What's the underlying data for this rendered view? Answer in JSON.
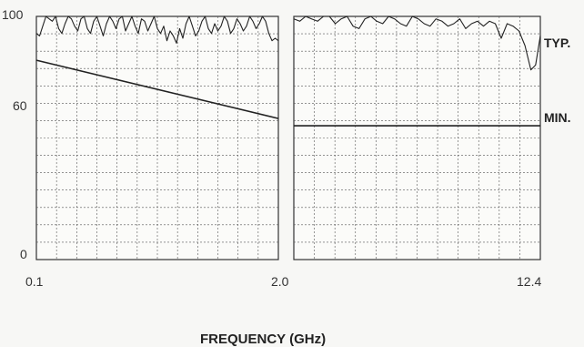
{
  "chart_data": {
    "type": "line",
    "xlabel": "FREQUENCY (GHz)",
    "ylabel": "",
    "ylim": [
      0,
      100
    ],
    "yticks": [
      "0",
      "60",
      "100"
    ],
    "grid": true,
    "panels": [
      {
        "xrange": [
          0.1,
          2.0
        ],
        "xticks": [
          "0.1",
          "2.0"
        ],
        "series": [
          {
            "name": "TYP.",
            "x": [
              0.1,
              0.125,
              0.15,
              0.175,
              0.2,
              0.225,
              0.25,
              0.275,
              0.3,
              0.325,
              0.35,
              0.375,
              0.4,
              0.425,
              0.45,
              0.475,
              0.5,
              0.525,
              0.55,
              0.575,
              0.6,
              0.625,
              0.65,
              0.675,
              0.7,
              0.725,
              0.75,
              0.775,
              0.8,
              0.825,
              0.85,
              0.875,
              0.9,
              0.925,
              0.95,
              0.975,
              1.0,
              1.025,
              1.05,
              1.075,
              1.1,
              1.125,
              1.15,
              1.175,
              1.2,
              1.225,
              1.25,
              1.275,
              1.3,
              1.325,
              1.35,
              1.375,
              1.4,
              1.425,
              1.45,
              1.475,
              1.5,
              1.525,
              1.55,
              1.575,
              1.6,
              1.625,
              1.65,
              1.675,
              1.7,
              1.725,
              1.75,
              1.775,
              1.8,
              1.825,
              1.85,
              1.875,
              1.9,
              1.925,
              1.95,
              1.975,
              2.0
            ],
            "y": [
              93,
              92,
              96,
              100,
              99,
              98,
              100,
              95,
              93,
              97,
              100,
              99,
              96,
              94,
              99,
              100,
              95,
              93,
              98,
              100,
              96,
              92,
              97,
              100,
              98,
              95,
              99,
              100,
              94,
              97,
              100,
              96,
              93,
              99,
              98,
              94,
              97,
              100,
              95,
              93,
              96,
              90,
              94,
              92,
              89,
              95,
              91,
              97,
              100,
              96,
              92,
              94,
              98,
              100,
              95,
              93,
              97,
              94,
              96,
              100,
              98,
              93,
              95,
              99,
              97,
              94,
              96,
              100,
              98,
              95,
              97,
              100,
              98,
              93,
              90,
              91,
              90
            ]
          },
          {
            "name": "MIN.",
            "x": [
              0.1,
              2.0
            ],
            "y": [
              82,
              58
            ]
          }
        ]
      },
      {
        "xrange": [
          2.0,
          12.4
        ],
        "xticks": [
          "2.0",
          "12.4"
        ],
        "series": [
          {
            "name": "TYP.",
            "x": [
              2.0,
              2.25,
              2.5,
              2.75,
              3.0,
              3.25,
              3.5,
              3.75,
              4.0,
              4.25,
              4.5,
              4.75,
              5.0,
              5.25,
              5.5,
              5.75,
              6.0,
              6.25,
              6.5,
              6.75,
              7.0,
              7.25,
              7.5,
              7.75,
              8.0,
              8.25,
              8.5,
              8.75,
              9.0,
              9.25,
              9.5,
              9.75,
              10.0,
              10.25,
              10.5,
              10.75,
              11.0,
              11.25,
              11.5,
              11.75,
              12.0,
              12.2,
              12.4
            ],
            "y": [
              99,
              98,
              100,
              99,
              98,
              100,
              100,
              97,
              99,
              100,
              96,
              95,
              99,
              100,
              98,
              97,
              100,
              99,
              97,
              96,
              100,
              99,
              97,
              96,
              99,
              98,
              96,
              97,
              99,
              95,
              97,
              98,
              96,
              98,
              97,
              91,
              97,
              96,
              94,
              88,
              78,
              80,
              92
            ]
          },
          {
            "name": "MIN.",
            "x": [
              2.0,
              12.4
            ],
            "y": [
              55,
              55
            ]
          }
        ]
      }
    ],
    "series_labels": [
      "TYP.",
      "MIN."
    ]
  }
}
